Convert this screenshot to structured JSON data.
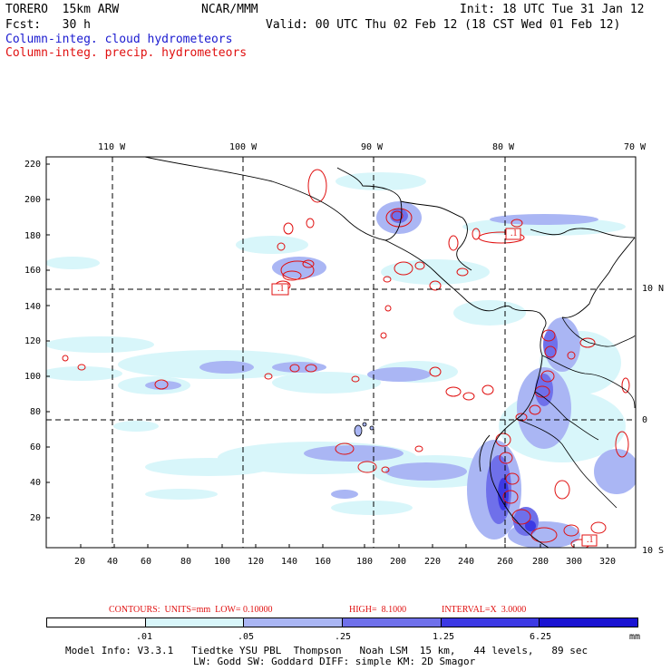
{
  "header": {
    "model": "TORERO  15km ARW",
    "org": "NCAR/MMM",
    "init": "Init: 18 UTC Tue 31 Jan 12",
    "fcst": "Fcst:   30 h",
    "valid": "Valid: 00 UTC Thu 02 Feb 12 (18 CST Wed 01 Feb 12)",
    "legend_cloud": "Column-integ. cloud hydrometeors",
    "legend_precip": "Column-integ. precip. hydrometeors"
  },
  "top_lon_labels": [
    "110 W",
    "100 W",
    "90 W",
    "80 W",
    "70 W"
  ],
  "right_lat_labels": [
    "10 N",
    "0",
    "10 S"
  ],
  "left_ticks": [
    "220",
    "200",
    "180",
    "160",
    "140",
    "120",
    "100",
    "80",
    "60",
    "40",
    "20"
  ],
  "bottom_ticks": [
    "20",
    "40",
    "60",
    "80",
    "100",
    "120",
    "140",
    "160",
    "180",
    "200",
    "220",
    "240",
    "260",
    "280",
    "300",
    "320"
  ],
  "contour_info": {
    "label": "CONTOURS:  UNITS=mm  LOW= 0.10000",
    "high": "HIGH=  8.1000",
    "interval": "INTERVAL=X  3.0000"
  },
  "colorbar": {
    "labels": [
      ".01",
      ".05",
      ".25",
      "1.25",
      "6.25"
    ],
    "unit": "mm",
    "colors": [
      "#ffffff",
      "#d8f6fa",
      "#aab6f4",
      "#6f70ea",
      "#3c39e4",
      "#1a13d2"
    ]
  },
  "footer": {
    "line1": "Model Info: V3.3.1   Tiedtke YSU PBL  Thompson   Noah LSM  15 km,   44 levels,   89 sec",
    "line2": "LW: Godd SW: Goddard DIFF: simple KM: 2D Smagor"
  },
  "contour_labels": [
    ".1",
    ".1",
    ".1"
  ]
}
